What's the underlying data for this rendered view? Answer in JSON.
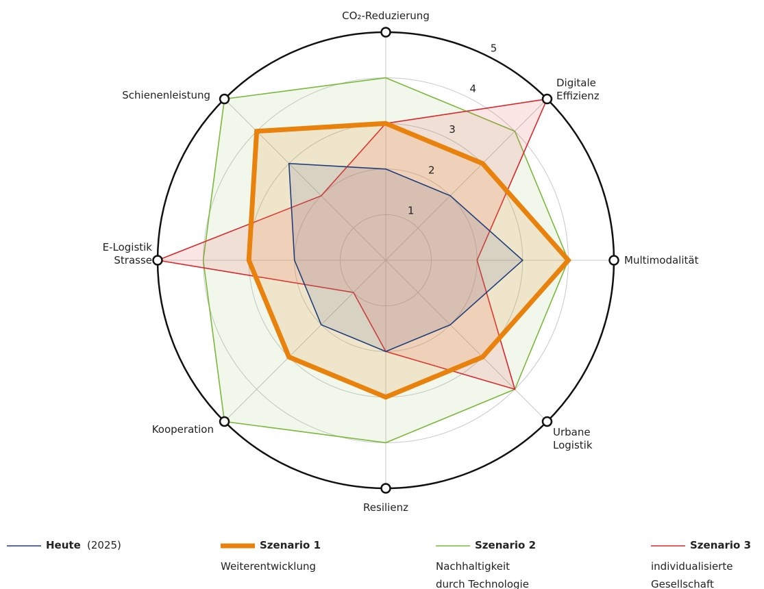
{
  "chart_data": {
    "type": "radar",
    "categories": [
      "CO₂-Reduzierung",
      "Digitale\nEffizienz",
      "Multimodalität",
      "Urbane\nLogistik",
      "Resilienz",
      "Kooperation",
      "E-Logistik\nStrasse",
      "Schienenleistung"
    ],
    "rlim": [
      0,
      5
    ],
    "rticks": [
      1,
      2,
      3,
      4,
      5
    ],
    "grid": true,
    "series": [
      {
        "name": "Szenario 2",
        "note": "Nachhaltigkeit\ndurch Technologie",
        "color": "#7ab83a",
        "fill": "rgba(140,190,80,0.12)",
        "values": [
          4,
          4,
          4,
          4,
          4,
          5,
          4,
          5
        ]
      },
      {
        "name": "Szenario 3",
        "note": "individualisierte\nGesellschaft",
        "color": "#d9262c",
        "fill": "rgba(225,90,90,0.15)",
        "values": [
          3,
          5,
          2,
          4,
          2,
          1,
          5,
          2
        ]
      },
      {
        "name": "Szenario 1",
        "note": "Weiterentwicklung",
        "color": "#e8820c",
        "fill": "rgba(235,150,60,0.18)",
        "values": [
          3,
          3,
          4,
          3,
          3,
          3,
          3,
          4
        ]
      },
      {
        "name": "Heute",
        "note": "(2025)",
        "color": "#1f3d7a",
        "fill": "rgba(90,100,150,0.15)",
        "values": [
          2,
          2,
          3,
          2,
          2,
          2,
          2,
          3
        ]
      }
    ]
  }
}
